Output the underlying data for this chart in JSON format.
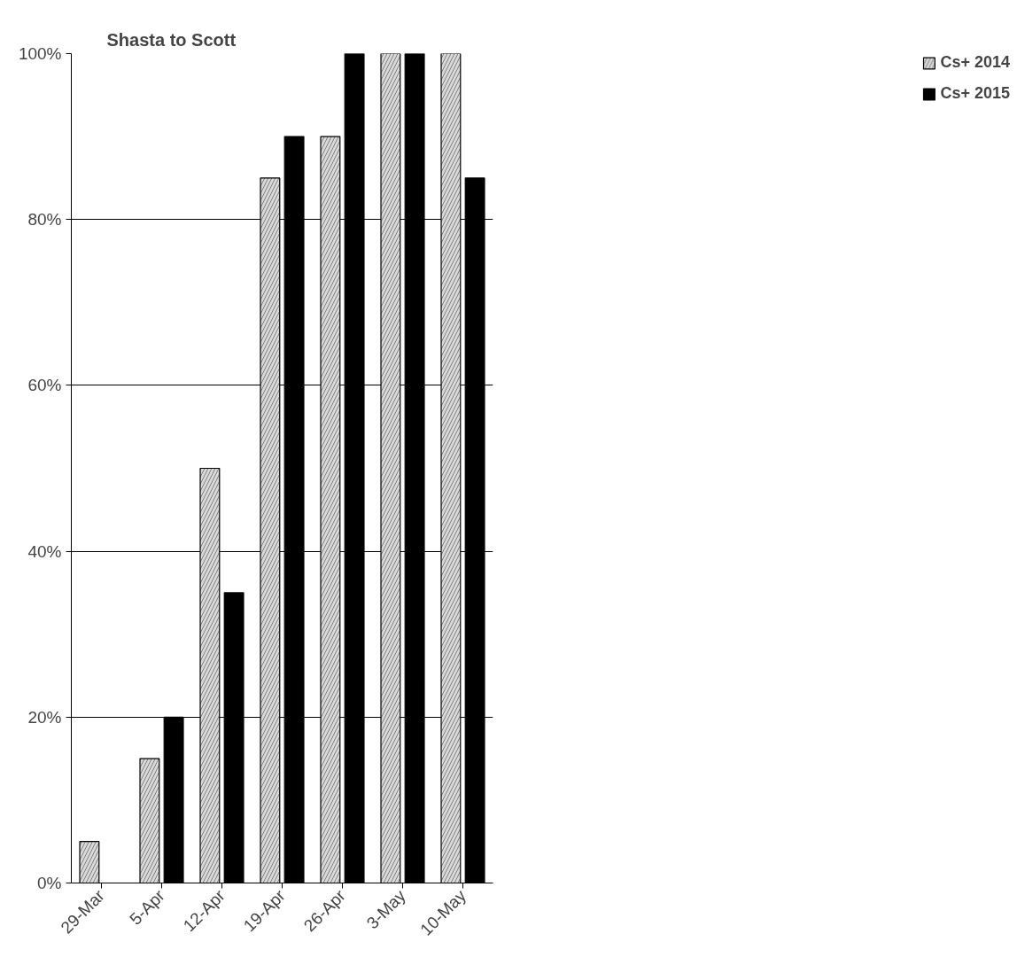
{
  "chart_data": {
    "type": "bar",
    "title": "Shasta to Scott",
    "categories": [
      "29-Mar",
      "5-Apr",
      "12-Apr",
      "19-Apr",
      "26-Apr",
      "3-May",
      "10-May"
    ],
    "series": [
      {
        "name": "Cs+ 2014",
        "color": "#d9d9d9",
        "values": [
          5,
          15,
          50,
          85,
          90,
          100,
          100
        ]
      },
      {
        "name": "Cs+ 2015",
        "color": "#000000",
        "values": [
          null,
          20,
          35,
          90,
          100,
          100,
          85
        ]
      }
    ],
    "ylim": [
      0,
      100
    ],
    "yticks": [
      {
        "value": 0,
        "label": "0%"
      },
      {
        "value": 20,
        "label": "20%"
      },
      {
        "value": 40,
        "label": "40%"
      },
      {
        "value": 60,
        "label": "60%"
      },
      {
        "value": 80,
        "label": "80%"
      },
      {
        "value": 100,
        "label": "100%"
      }
    ],
    "grid": "y",
    "legend": "top right"
  }
}
